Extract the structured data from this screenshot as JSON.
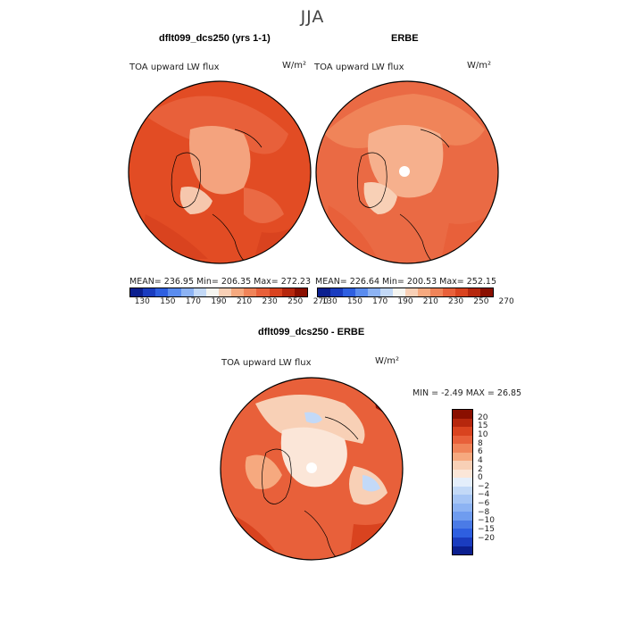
{
  "season": "JJA",
  "panels": [
    {
      "title": "dflt099_dcs250 (yrs 1-1)",
      "variable": "TOA upward LW flux",
      "units": "W/m²",
      "stats": "MEAN= 236.95   Min= 206.35   Max= 272.23"
    },
    {
      "title": "ERBE",
      "variable": "TOA upward LW flux",
      "units": "W/m²",
      "stats": "MEAN= 226.64   Min= 200.53   Max= 252.15"
    }
  ],
  "colorbar": {
    "colors": [
      "#0b1f8f",
      "#1a3cbf",
      "#2e5fe0",
      "#5a8cee",
      "#8db3f3",
      "#c3d9f7",
      "#f5f5f0",
      "#f8d0b6",
      "#f6a97f",
      "#f08459",
      "#e8603a",
      "#d9431f",
      "#b6270d",
      "#8a0f00"
    ],
    "labels": [
      "130",
      "150",
      "170",
      "190",
      "210",
      "230",
      "250",
      "270"
    ]
  },
  "diff": {
    "title": "dflt099_dcs250 - ERBE",
    "variable": "TOA upward LW flux",
    "units": "W/m²",
    "stats": "MIN =   -2.49 MAX =   26.85",
    "colors": [
      "#8a0f00",
      "#b6270d",
      "#d9431f",
      "#e8603a",
      "#f08459",
      "#f6a97f",
      "#f8d0b6",
      "#fbe6d8",
      "#e4eefb",
      "#c3d9f7",
      "#a6c5f5",
      "#8db3f3",
      "#6f9cef",
      "#4b7be6",
      "#2e5fe0",
      "#1a3cbf",
      "#0b1f8f"
    ],
    "labels": [
      "20",
      "15",
      "10",
      "8",
      "6",
      "4",
      "2",
      "0",
      "−2",
      "−4",
      "−6",
      "−8",
      "−10",
      "−15",
      "−20"
    ]
  }
}
